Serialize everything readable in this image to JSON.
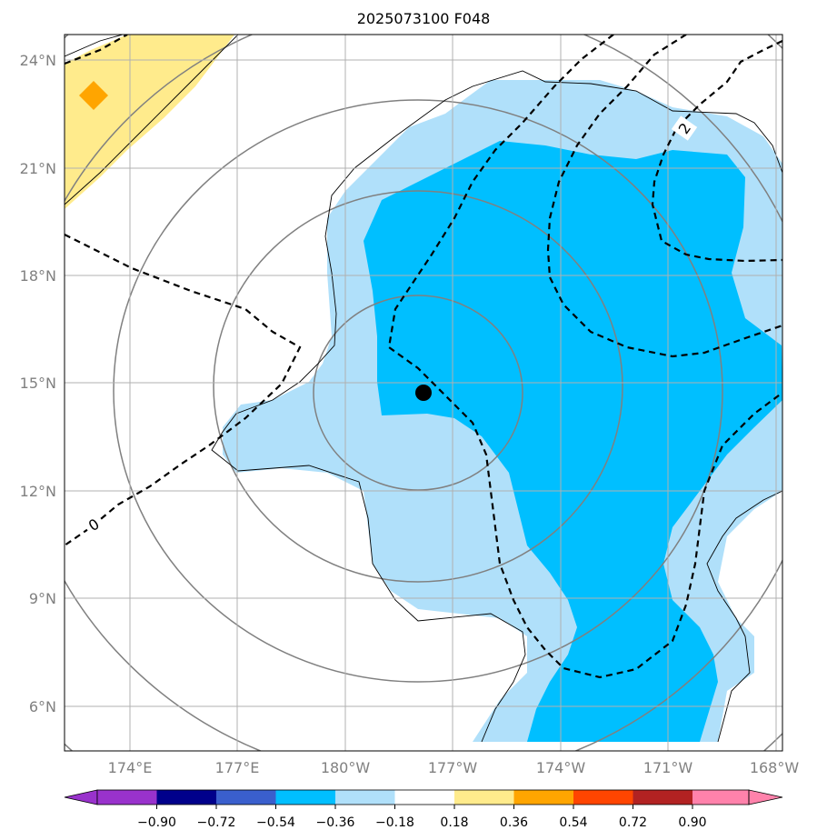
{
  "title": "2025073100 F048",
  "lat_ticks": [
    "24°N",
    "21°N",
    "18°N",
    "15°N",
    "12°N",
    "9°N",
    "6°N"
  ],
  "lon_ticks": [
    "174°E",
    "177°E",
    "180°W",
    "177°W",
    "174°W",
    "171°W",
    "168°W"
  ],
  "contour_labels": [
    "0",
    "2"
  ],
  "colorbar": {
    "ticks": [
      "−0.90",
      "−0.72",
      "−0.54",
      "−0.36",
      "−0.18",
      "0.18",
      "0.36",
      "0.54",
      "0.72",
      "0.90"
    ],
    "colors": [
      "#9932cc",
      "#00008b",
      "#3a5fcd",
      "#00bfff",
      "#b0e0fa",
      "#ffffff",
      "#ffeb8c",
      "#ffa500",
      "#ff4500",
      "#b22222",
      "#ff82ab"
    ]
  },
  "map": {
    "lon_range": [
      "172°E",
      "168°W"
    ],
    "lat_range": [
      "4.8°N",
      "24.7°N"
    ],
    "gridlines": true,
    "marker": {
      "name": "center-dot",
      "color": "#000000"
    },
    "shading_colors": {
      "light_blue": "#b0e0fa",
      "deep_sky_blue": "#00bfff",
      "yellow": "#ffeb8c",
      "orange": "#ffa500"
    }
  }
}
